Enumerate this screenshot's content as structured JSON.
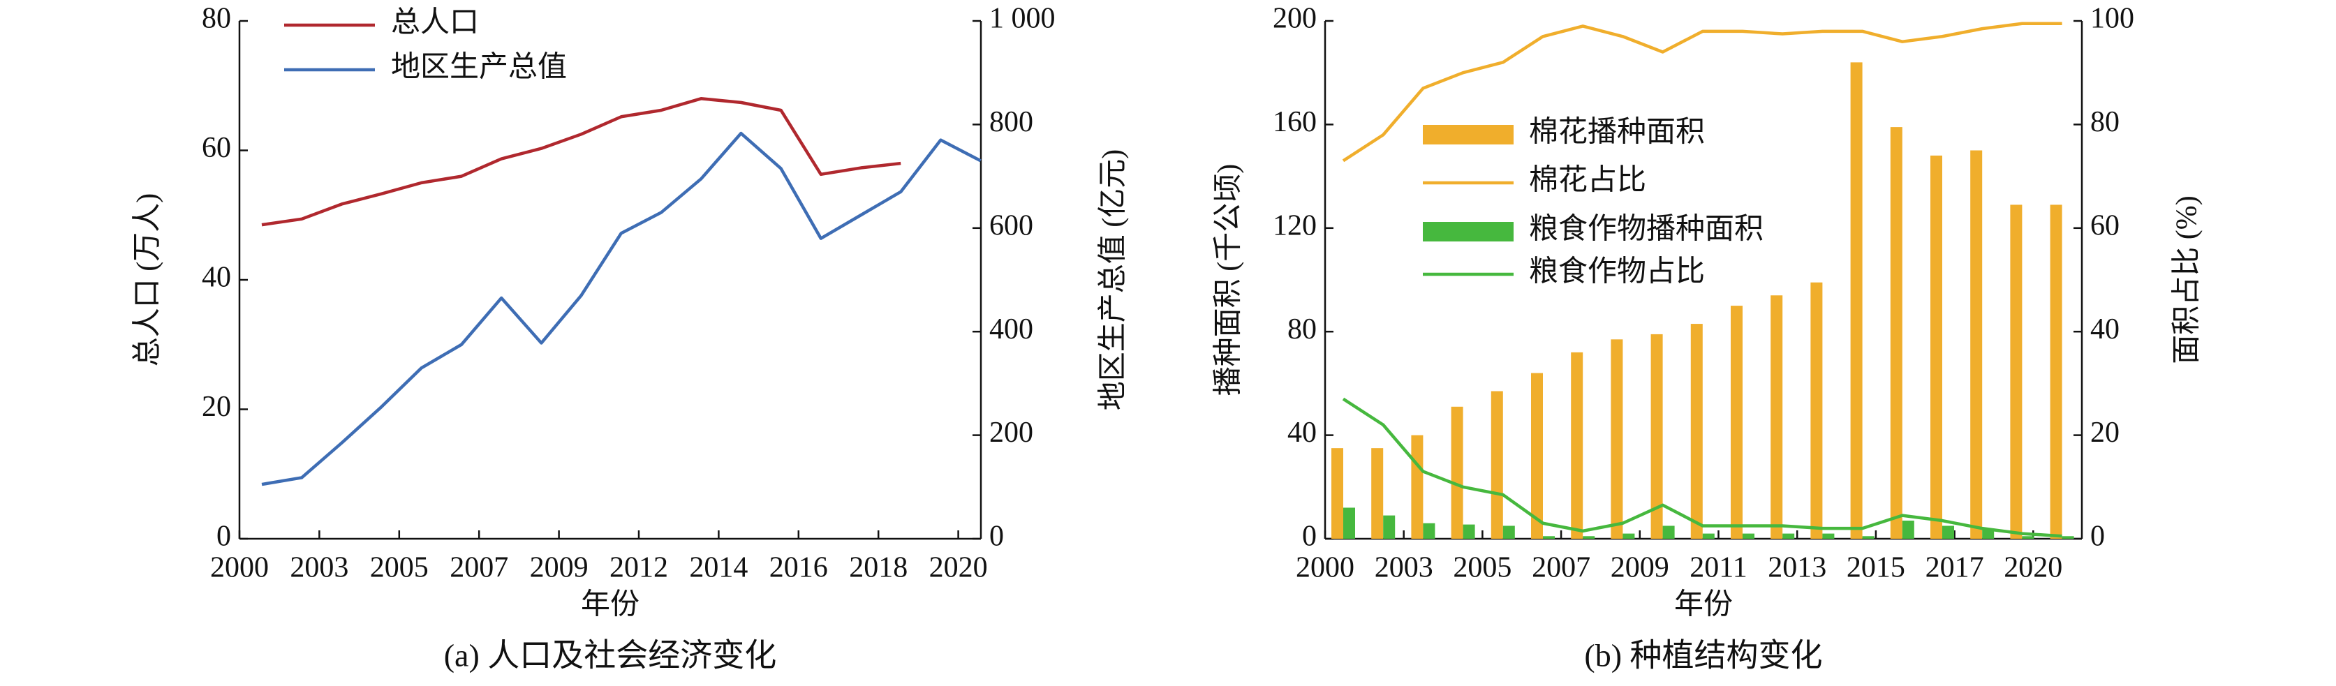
{
  "chart_data": [
    {
      "type": "line",
      "caption": "(a) 人口及社会经济变化",
      "xlabel": "年份",
      "ylabel": "总人口 (万人)",
      "y2label": "地区生产总值 (亿元)",
      "xticks": [
        2000,
        2003,
        2005,
        2007,
        2009,
        2012,
        2014,
        2016,
        2018,
        2020
      ],
      "ylim": [
        0,
        80
      ],
      "yticks": [
        0,
        20,
        40,
        60,
        80
      ],
      "y2lim": [
        0,
        1000
      ],
      "y2ticks": [
        0,
        200,
        400,
        600,
        800,
        {
          "value": 1000,
          "label": "1 000"
        }
      ],
      "legend": "upper left",
      "series": [
        {
          "name": "总人口",
          "type": "line",
          "color": "#b0282e",
          "values": [
            48.5,
            49.4,
            51.7,
            53.3,
            55,
            56,
            58.7,
            60.3,
            62.5,
            65.2,
            66.2,
            68,
            67.4,
            66.2,
            56.3,
            57.3,
            58,
            null,
            null
          ]
        },
        {
          "name": "地区生产总值",
          "type": "line",
          "color": "#3e6db4",
          "axis": "y2",
          "values": [
            105,
            118,
            185,
            255,
            330,
            375,
            465,
            378,
            470,
            590,
            630,
            695,
            783,
            715,
            580,
            625,
            670,
            770,
            730
          ]
        }
      ]
    },
    {
      "type": "bar-line",
      "caption": "(b) 种植结构变化",
      "xlabel": "年份",
      "ylabel": "播种面积 (千公顷)",
      "y2label": "面积占比 (%)",
      "xticks": [
        2000,
        2003,
        2005,
        2007,
        2009,
        2011,
        2013,
        2015,
        2017,
        2020
      ],
      "ylim": [
        0,
        200
      ],
      "yticks": [
        0,
        40,
        80,
        120,
        160,
        200
      ],
      "y2lim": [
        0,
        100
      ],
      "y2ticks": [
        0,
        20,
        40,
        60,
        80,
        100
      ],
      "legend": "upper left",
      "series": [
        {
          "name": "棉花播种面积",
          "type": "bar",
          "color": "#f0ae2c",
          "values": [
            35,
            35,
            40,
            51,
            57,
            64,
            72,
            77,
            79,
            83,
            90,
            94,
            99,
            184,
            159,
            148,
            150,
            129,
            129
          ]
        },
        {
          "name": "棉花占比",
          "type": "line",
          "color": "#f0ae2c",
          "axis": "y2",
          "values": [
            73,
            78,
            87,
            90,
            92,
            97,
            99,
            97,
            94,
            98,
            98,
            97.5,
            98,
            98,
            96,
            97,
            98.5,
            99.5,
            99.5
          ]
        },
        {
          "name": "粮食作物播种面积",
          "type": "bar",
          "color": "#46b83e",
          "values": [
            12,
            9,
            6,
            5.5,
            5,
            1,
            1,
            2,
            5,
            2,
            2,
            2,
            2,
            1,
            7,
            5,
            4,
            1,
            1
          ]
        },
        {
          "name": "粮食作物占比",
          "type": "line",
          "color": "#46b83e",
          "axis": "y2",
          "values": [
            27,
            22,
            13,
            10,
            8.5,
            3,
            1.5,
            3,
            6.5,
            2.5,
            2.5,
            2.5,
            2,
            2,
            4.5,
            3.5,
            2,
            1,
            0.5
          ]
        }
      ]
    }
  ]
}
